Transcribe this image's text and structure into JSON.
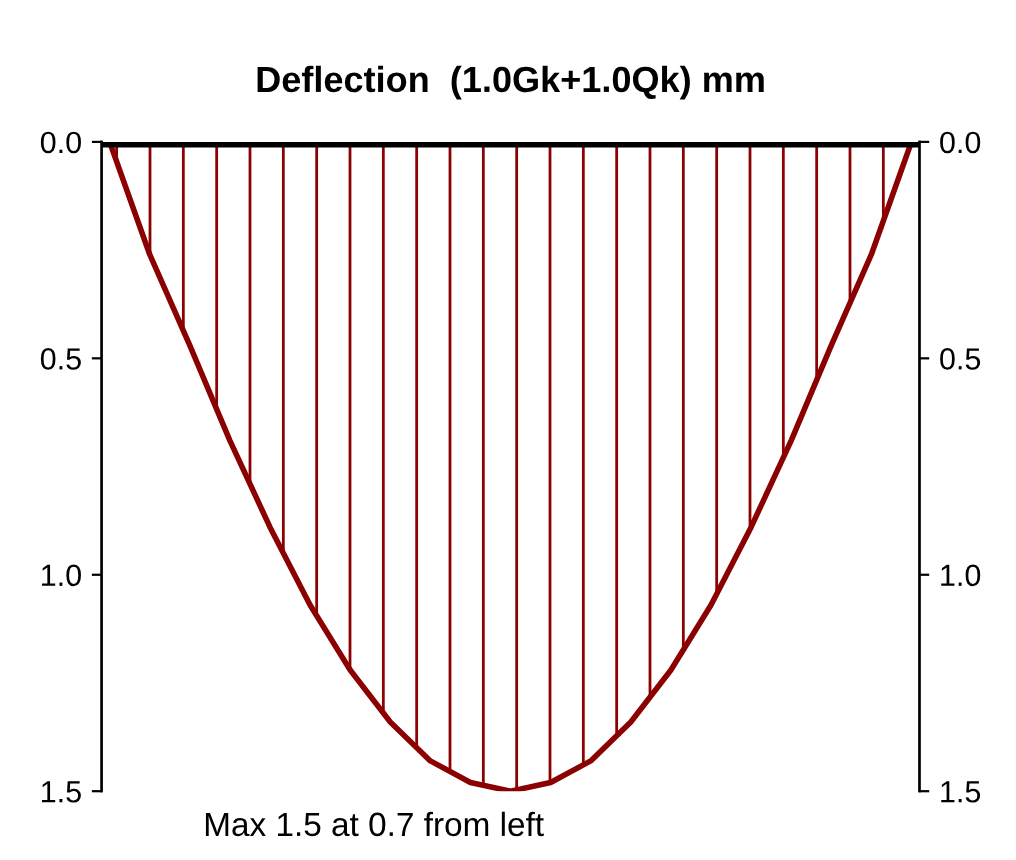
{
  "chart_data": {
    "type": "area",
    "title": "Deflection  (1.0Gk+1.0Qk) mm",
    "categories": [
      null,
      null,
      null,
      null,
      null,
      null,
      null,
      null,
      null,
      null,
      null,
      null,
      null,
      null,
      null,
      null,
      null,
      null,
      null,
      null,
      null
    ],
    "series": [
      {
        "color": "#8b0000",
        "values": [
          0,
          0.26,
          0.47,
          0.69,
          0.89,
          1.07,
          1.22,
          1.34,
          1.43,
          1.48,
          1.5,
          1.48,
          1.43,
          1.34,
          1.22,
          1.07,
          0.89,
          0.69,
          0.47,
          0.26,
          0
        ]
      }
    ],
    "ylim": [
      1.5,
      0
    ],
    "yticks": [
      {
        "value": 0,
        "label": "0.0"
      },
      0.5,
      {
        "value": 1,
        "label": "1.0"
      },
      1.5
    ],
    "y2lim": [
      1.5,
      0
    ],
    "y2ticks": [
      {
        "value": 0,
        "label": "0.0"
      },
      0.5,
      {
        "value": 1,
        "label": "1.0"
      },
      1.5
    ],
    "ref_lines": [
      {
        "axis": "y",
        "value": 0,
        "color": "#000000"
      }
    ],
    "annotations": [
      "Max 1.5 at 0.7 from left"
    ],
    "grid": false,
    "legend": false,
    "marker": "none",
    "line_style": "solid"
  }
}
